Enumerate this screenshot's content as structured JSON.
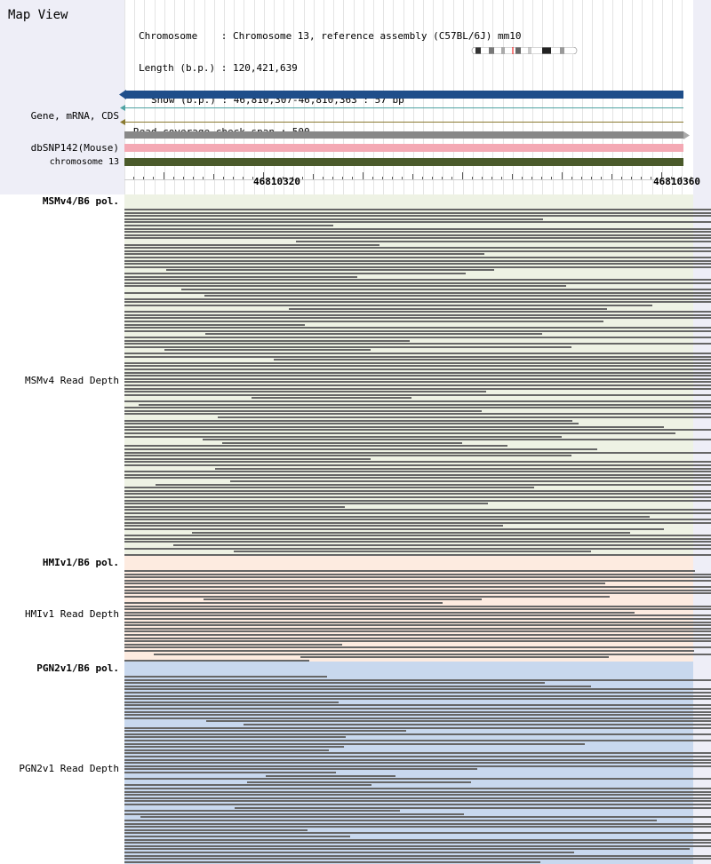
{
  "title": "Map View",
  "info": {
    "chromosome_line": "Chromosome    : Chromosome 13, reference assembly (C57BL/6J) mm10",
    "length_line": "Length (b.p.) : 120,421,639",
    "show_line": "Show (b.p.) : 46,810,307-46,810,363 : 57 bp",
    "coverage_line": "Read coverage check span : 500"
  },
  "tracks": {
    "gene_label": "Gene, mRNA, CDS",
    "dbsnp_label": "dbSNP142(Mouse)",
    "chrom_label": "chromosome 13"
  },
  "ruler": {
    "left_label": "46810320",
    "right_label": "46810360"
  },
  "panels": [
    {
      "pol_label": "MSMv4/B6 pol.",
      "depth_label": "MSMv4 Read Depth",
      "color": "#eef2e4"
    },
    {
      "pol_label": "HMIv1/B6 pol.",
      "depth_label": "HMIv1 Read Depth",
      "color": "#fdebe0"
    },
    {
      "pol_label": "PGN2v1/B6 pol.",
      "depth_label": "PGN2v1 Read Depth",
      "color": "#c8d8ee"
    }
  ],
  "colors": {
    "gene_bar": "#1f4e8a",
    "snp_bar": "#f4a9b4",
    "chrom_bar": "#4a5a2a",
    "gray_bar": "#888888",
    "read": "#666666",
    "sidebar": "#eeeef7"
  }
}
